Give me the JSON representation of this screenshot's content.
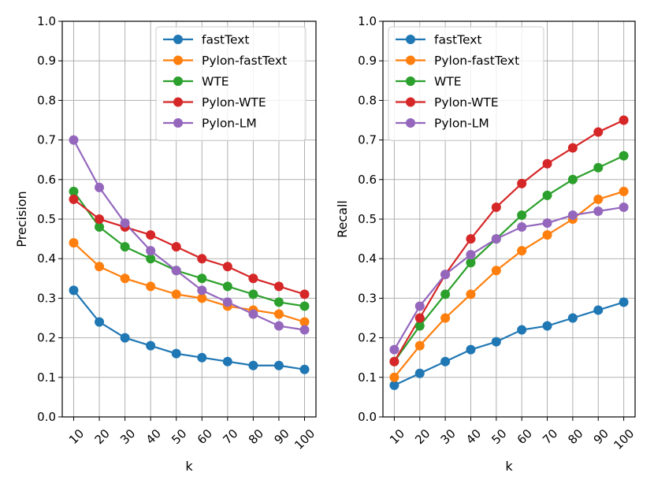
{
  "chart_data": [
    {
      "type": "line",
      "title": "",
      "xlabel": "k",
      "ylabel": "Precision",
      "ylim": [
        0.0,
        1.0
      ],
      "yticks": [
        "0.0",
        "0.1",
        "0.2",
        "0.3",
        "0.4",
        "0.5",
        "0.6",
        "0.7",
        "0.8",
        "0.9",
        "1.0"
      ],
      "categories": [
        "10",
        "20",
        "30",
        "40",
        "50",
        "60",
        "70",
        "80",
        "90",
        "100"
      ],
      "grid": true,
      "legend_position": "top-right",
      "series": [
        {
          "name": "fastText",
          "color": "#1f77b4",
          "values": [
            0.32,
            0.24,
            0.2,
            0.18,
            0.16,
            0.15,
            0.14,
            0.13,
            0.13,
            0.12
          ]
        },
        {
          "name": "Pylon-fastText",
          "color": "#ff7f0e",
          "values": [
            0.44,
            0.38,
            0.35,
            0.33,
            0.31,
            0.3,
            0.28,
            0.27,
            0.26,
            0.24
          ]
        },
        {
          "name": "WTE",
          "color": "#2ca02c",
          "values": [
            0.57,
            0.48,
            0.43,
            0.4,
            0.37,
            0.35,
            0.33,
            0.31,
            0.29,
            0.28
          ]
        },
        {
          "name": "Pylon-WTE",
          "color": "#d62728",
          "values": [
            0.55,
            0.5,
            0.48,
            0.46,
            0.43,
            0.4,
            0.38,
            0.35,
            0.33,
            0.31
          ]
        },
        {
          "name": "Pylon-LM",
          "color": "#9467bd",
          "values": [
            0.7,
            0.58,
            0.49,
            0.42,
            0.37,
            0.32,
            0.29,
            0.26,
            0.23,
            0.22
          ]
        }
      ]
    },
    {
      "type": "line",
      "title": "",
      "xlabel": "k",
      "ylabel": "Recall",
      "ylim": [
        0.0,
        1.0
      ],
      "yticks": [
        "0.0",
        "0.1",
        "0.2",
        "0.3",
        "0.4",
        "0.5",
        "0.6",
        "0.7",
        "0.8",
        "0.9",
        "1.0"
      ],
      "categories": [
        "10",
        "20",
        "30",
        "40",
        "50",
        "60",
        "70",
        "80",
        "90",
        "100"
      ],
      "grid": true,
      "legend_position": "top-left",
      "series": [
        {
          "name": "fastText",
          "color": "#1f77b4",
          "values": [
            0.08,
            0.11,
            0.14,
            0.17,
            0.19,
            0.22,
            0.23,
            0.25,
            0.27,
            0.29
          ]
        },
        {
          "name": "Pylon-fastText",
          "color": "#ff7f0e",
          "values": [
            0.1,
            0.18,
            0.25,
            0.31,
            0.37,
            0.42,
            0.46,
            0.5,
            0.55,
            0.57
          ]
        },
        {
          "name": "WTE",
          "color": "#2ca02c",
          "values": [
            0.14,
            0.23,
            0.31,
            0.39,
            0.45,
            0.51,
            0.56,
            0.6,
            0.63,
            0.66
          ]
        },
        {
          "name": "Pylon-WTE",
          "color": "#d62728",
          "values": [
            0.14,
            0.25,
            0.36,
            0.45,
            0.53,
            0.59,
            0.64,
            0.68,
            0.72,
            0.75
          ]
        },
        {
          "name": "Pylon-LM",
          "color": "#9467bd",
          "values": [
            0.17,
            0.28,
            0.36,
            0.41,
            0.45,
            0.48,
            0.49,
            0.51,
            0.52,
            0.53
          ]
        }
      ]
    }
  ]
}
